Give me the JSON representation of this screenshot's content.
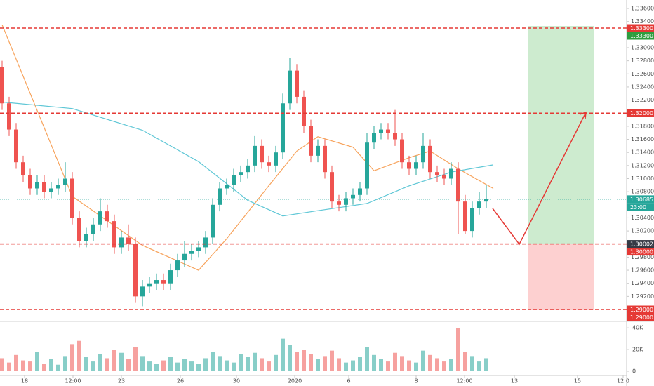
{
  "chart_data": {
    "type": "candlestick",
    "ohlc": [
      [
        1.327,
        1.328,
        1.3205,
        1.3215
      ],
      [
        1.3215,
        1.3225,
        1.3165,
        1.3175
      ],
      [
        1.3175,
        1.3185,
        1.3115,
        1.3125
      ],
      [
        1.3125,
        1.3135,
        1.3095,
        1.3105
      ],
      [
        1.3105,
        1.3115,
        1.3075,
        1.3085
      ],
      [
        1.3085,
        1.3105,
        1.3075,
        1.3095
      ],
      [
        1.3095,
        1.3105,
        1.307,
        1.308
      ],
      [
        1.308,
        1.3095,
        1.307,
        1.3085
      ],
      [
        1.3085,
        1.31,
        1.3075,
        1.309
      ],
      [
        1.309,
        1.3125,
        1.308,
        1.31
      ],
      [
        1.31,
        1.311,
        1.303,
        1.304
      ],
      [
        1.304,
        1.305,
        1.2995,
        1.3005
      ],
      [
        1.3005,
        1.3025,
        1.2995,
        1.3015
      ],
      [
        1.3015,
        1.304,
        1.3005,
        1.303
      ],
      [
        1.303,
        1.307,
        1.302,
        1.305
      ],
      [
        1.305,
        1.306,
        1.3025,
        1.3035
      ],
      [
        1.3035,
        1.3045,
        1.2985,
        1.2995
      ],
      [
        1.2995,
        1.302,
        1.2985,
        1.301
      ],
      [
        1.301,
        1.303,
        1.299,
        1.3
      ],
      [
        1.3,
        1.301,
        1.291,
        1.292
      ],
      [
        1.292,
        1.2945,
        1.2905,
        1.2935
      ],
      [
        1.2935,
        1.295,
        1.2925,
        1.294
      ],
      [
        1.294,
        1.2955,
        1.293,
        1.2945
      ],
      [
        1.2945,
        1.2955,
        1.293,
        1.294
      ],
      [
        1.294,
        1.297,
        1.293,
        1.296
      ],
      [
        1.296,
        1.2985,
        1.295,
        1.2975
      ],
      [
        1.2975,
        1.3005,
        1.2965,
        1.2985
      ],
      [
        1.2985,
        1.3,
        1.2975,
        1.299
      ],
      [
        1.299,
        1.3005,
        1.298,
        1.2995
      ],
      [
        1.2995,
        1.302,
        1.2985,
        1.301
      ],
      [
        1.301,
        1.307,
        1.3,
        1.306
      ],
      [
        1.306,
        1.3095,
        1.305,
        1.3085
      ],
      [
        1.3085,
        1.31,
        1.3075,
        1.309
      ],
      [
        1.309,
        1.3115,
        1.308,
        1.3105
      ],
      [
        1.3105,
        1.312,
        1.3095,
        1.311
      ],
      [
        1.311,
        1.313,
        1.31,
        1.312
      ],
      [
        1.312,
        1.3165,
        1.311,
        1.315
      ],
      [
        1.315,
        1.316,
        1.3115,
        1.3125
      ],
      [
        1.3125,
        1.3135,
        1.311,
        1.312
      ],
      [
        1.312,
        1.315,
        1.311,
        1.314
      ],
      [
        1.314,
        1.323,
        1.313,
        1.3215
      ],
      [
        1.3215,
        1.3285,
        1.3205,
        1.3265
      ],
      [
        1.3265,
        1.3275,
        1.3215,
        1.3225
      ],
      [
        1.3225,
        1.3235,
        1.317,
        1.318
      ],
      [
        1.318,
        1.319,
        1.3125,
        1.3135
      ],
      [
        1.3135,
        1.316,
        1.3125,
        1.315
      ],
      [
        1.315,
        1.316,
        1.31,
        1.311
      ],
      [
        1.311,
        1.312,
        1.3055,
        1.3065
      ],
      [
        1.3065,
        1.3075,
        1.305,
        1.306
      ],
      [
        1.306,
        1.308,
        1.305,
        1.307
      ],
      [
        1.307,
        1.3085,
        1.306,
        1.3075
      ],
      [
        1.3075,
        1.3095,
        1.3065,
        1.3085
      ],
      [
        1.3085,
        1.317,
        1.3075,
        1.3155
      ],
      [
        1.3155,
        1.318,
        1.3145,
        1.317
      ],
      [
        1.317,
        1.3185,
        1.316,
        1.3175
      ],
      [
        1.3175,
        1.3185,
        1.316,
        1.317
      ],
      [
        1.317,
        1.3205,
        1.315,
        1.316
      ],
      [
        1.316,
        1.317,
        1.3115,
        1.3125
      ],
      [
        1.3125,
        1.3135,
        1.3105,
        1.3115
      ],
      [
        1.3115,
        1.3135,
        1.3105,
        1.3125
      ],
      [
        1.3125,
        1.317,
        1.3115,
        1.315
      ],
      [
        1.315,
        1.316,
        1.31,
        1.311
      ],
      [
        1.311,
        1.312,
        1.3095,
        1.3105
      ],
      [
        1.3105,
        1.3115,
        1.309,
        1.31
      ],
      [
        1.31,
        1.3125,
        1.309,
        1.3115
      ],
      [
        1.3115,
        1.3125,
        1.3015,
        1.3065
      ],
      [
        1.3065,
        1.3075,
        1.3015,
        1.302
      ],
      [
        1.302,
        1.3065,
        1.301,
        1.3055
      ],
      [
        1.3055,
        1.308,
        1.3045,
        1.3065
      ],
      [
        1.3065,
        1.309,
        1.3055,
        1.30685
      ]
    ],
    "up_color": "#26a69a",
    "down_color": "#ef5350",
    "volumes": [
      12000,
      8000,
      15000,
      10000,
      9000,
      18000,
      7000,
      11000,
      6000,
      14000,
      25000,
      28000,
      13000,
      9000,
      16000,
      12000,
      20000,
      17000,
      11000,
      22000,
      14000,
      9000,
      7000,
      10000,
      13000,
      8000,
      11000,
      9000,
      7000,
      12000,
      18000,
      14000,
      10000,
      8000,
      16000,
      13000,
      17000,
      12000,
      9000,
      15000,
      30000,
      24000,
      18000,
      20000,
      16000,
      11000,
      14000,
      19000,
      12000,
      8000,
      10000,
      13000,
      22000,
      15000,
      11000,
      9000,
      17000,
      14000,
      10000,
      8000,
      19000,
      15000,
      12000,
      9000,
      11000,
      40000,
      18000,
      14000,
      9000,
      12000
    ],
    "series": [
      {
        "color": "#f7a35c",
        "x": [
          0,
          10,
          20,
          28,
          32,
          38,
          42,
          45,
          50,
          53,
          58,
          61,
          65,
          70
        ],
        "values": [
          1.3335,
          1.3073,
          1.2998,
          1.296,
          1.3008,
          1.3089,
          1.3142,
          1.3164,
          1.3148,
          1.3112,
          1.3132,
          1.3142,
          1.3115,
          1.3085
        ]
      },
      {
        "color": "#5fc7d6",
        "x": [
          0,
          10,
          20,
          28,
          35,
          40,
          45,
          52,
          58,
          64,
          70
        ],
        "values": [
          1.3217,
          1.3207,
          1.3174,
          1.3126,
          1.3067,
          1.3043,
          1.3051,
          1.3062,
          1.3089,
          1.311,
          1.3121
        ]
      }
    ],
    "xlim": [
      -0.3,
      89
    ],
    "xticks": [
      {
        "value": 3.2,
        "label": "18"
      },
      {
        "value": 10.1,
        "label": "12:00"
      },
      {
        "value": 17.0,
        "label": "23"
      },
      {
        "value": 25.4,
        "label": "26"
      },
      {
        "value": 33.4,
        "label": "30"
      },
      {
        "value": 41.7,
        "label": "2020"
      },
      {
        "value": 49.4,
        "label": "6"
      },
      {
        "value": 59.0,
        "label": "8"
      },
      {
        "value": 65.9,
        "label": "12:00"
      },
      {
        "value": 73.0,
        "label": "13"
      },
      {
        "value": 82.0,
        "label": "15"
      },
      {
        "value": 88.5,
        "label": "12:0"
      }
    ],
    "ylim": [
      1.2885,
      1.33729
    ],
    "yticks": [
      {
        "value": 1.336,
        "label": "1.33600"
      },
      {
        "value": 1.334,
        "label": "1.33400"
      },
      {
        "value": 1.33,
        "label": "1.33000"
      },
      {
        "value": 1.328,
        "label": "1.32800"
      },
      {
        "value": 1.326,
        "label": "1.32600"
      },
      {
        "value": 1.324,
        "label": "1.32400"
      },
      {
        "value": 1.322,
        "label": "1.32200"
      },
      {
        "value": 1.318,
        "label": "1.31800"
      },
      {
        "value": 1.316,
        "label": "1.31600"
      },
      {
        "value": 1.314,
        "label": "1.31400"
      },
      {
        "value": 1.312,
        "label": "1.31200"
      },
      {
        "value": 1.31,
        "label": "1.31000"
      },
      {
        "value": 1.308,
        "label": "1.30800"
      },
      {
        "value": 1.304,
        "label": "1.30400"
      },
      {
        "value": 1.302,
        "label": "1.30200"
      },
      {
        "value": 1.298,
        "label": "1.29800"
      },
      {
        "value": 1.296,
        "label": "1.29600"
      },
      {
        "value": 1.294,
        "label": "1.29400"
      },
      {
        "value": 1.292,
        "label": "1.29200"
      }
    ],
    "volume_ylim": [
      0,
      44000
    ],
    "volume_yticks": [
      {
        "value": 40000,
        "label": "40K"
      },
      {
        "value": 20000,
        "label": "20K"
      },
      0
    ],
    "levels": [
      1.333,
      1.32,
      1.30002,
      1.29
    ],
    "level_color": "#e53935",
    "price_labels": [
      {
        "value": 1.333,
        "label": "1.33300",
        "color": "#e53935"
      },
      {
        "value": 1.333,
        "label": "1.33300",
        "color": "#2e9e3f"
      },
      {
        "value": 1.32,
        "label": "1.32000",
        "color": "#e53935"
      },
      {
        "value": 1.30685,
        "label": "1.30685",
        "color": "#26a69a"
      },
      {
        "value": 1.30685,
        "label": "23:00",
        "color": "#26a69a"
      },
      {
        "value": 1.30002,
        "label": "1.30002",
        "color": "#363a45"
      },
      {
        "value": 1.3,
        "label": "1.30000",
        "color": "#e53935"
      },
      {
        "value": 1.29,
        "label": "1.29000",
        "color": "#e53935"
      },
      {
        "value": 1.29,
        "label": "1.29000",
        "color": "#e53935"
      }
    ],
    "current_price": 1.30685
  }
}
